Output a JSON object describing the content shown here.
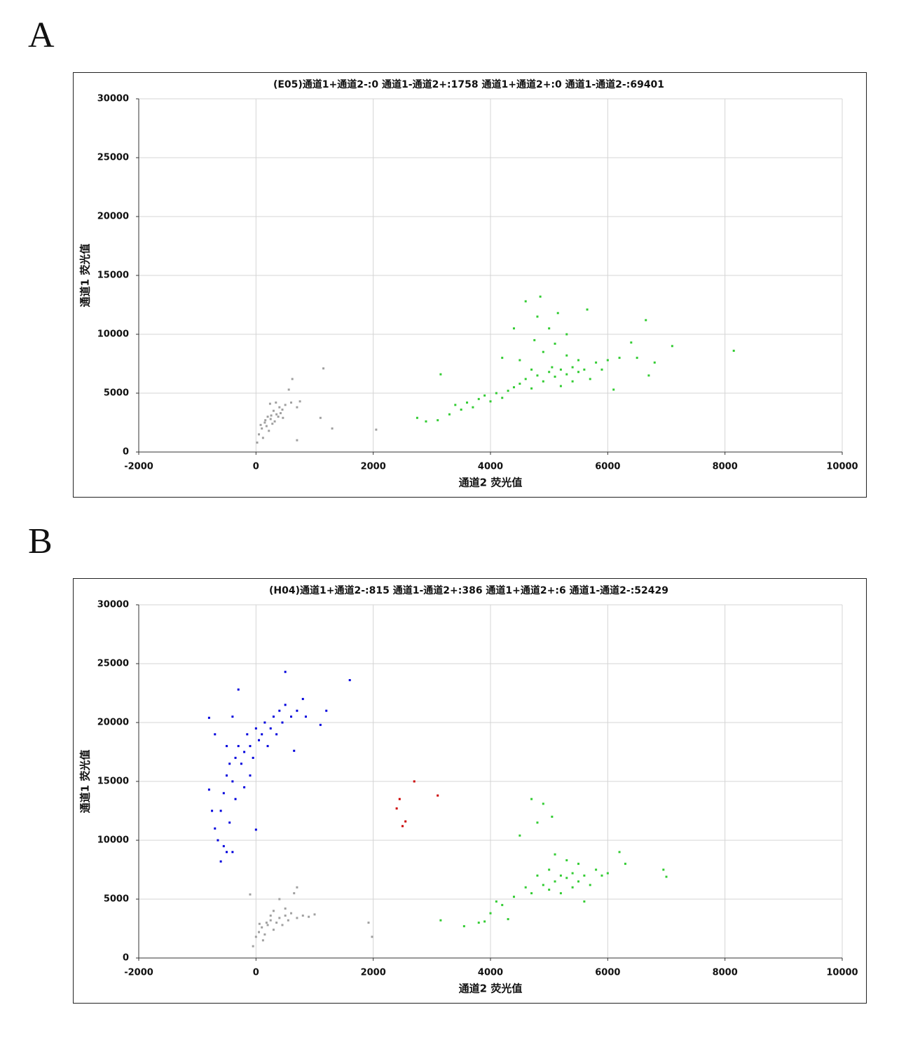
{
  "chart_data": [
    {
      "type": "scatter",
      "panel_label": "A",
      "title": "(E05)通道1+通道2-:0    通道1-通道2+:1758    通道1+通道2+:0    通道1-通道2-:69401",
      "xlabel": "通道2  荧光值",
      "ylabel": "通道1  荧光值",
      "xlim": [
        -2000,
        10000
      ],
      "ylim": [
        0,
        30000
      ],
      "xticks": [
        -2000,
        0,
        2000,
        4000,
        6000,
        8000,
        10000
      ],
      "yticks": [
        0,
        5000,
        10000,
        15000,
        20000,
        25000,
        30000
      ],
      "grid": true,
      "series": [
        {
          "color": "#a0a0a0",
          "x": [
            100,
            150,
            200,
            250,
            300,
            350,
            400,
            50,
            120,
            180,
            220,
            280,
            320,
            380,
            450,
            500,
            420,
            260,
            160,
            80,
            600,
            700,
            750,
            560,
            620,
            700,
            20,
            240,
            340,
            460,
            1150,
            1100,
            1300,
            2050
          ],
          "values": [
            2000,
            2500,
            3000,
            2800,
            3500,
            3200,
            3800,
            1500,
            1200,
            2200,
            1800,
            2400,
            2600,
            3000,
            3600,
            4000,
            3300,
            3100,
            2700,
            2300,
            4200,
            3800,
            4300,
            5300,
            6200,
            1000,
            800,
            4100,
            4200,
            2900,
            7100,
            2900,
            2000,
            1900
          ]
        },
        {
          "color": "#33cc33",
          "x": [
            2750,
            2900,
            3100,
            3150,
            3300,
            3400,
            3500,
            3600,
            3700,
            3800,
            3900,
            4000,
            4100,
            4200,
            4300,
            4400,
            4500,
            4500,
            4600,
            4600,
            4700,
            4700,
            4750,
            4800,
            4800,
            4850,
            4900,
            4900,
            5000,
            5000,
            5050,
            5100,
            5100,
            5150,
            5200,
            5200,
            5300,
            5300,
            5400,
            5400,
            5500,
            5500,
            5600,
            5650,
            5700,
            5800,
            5900,
            6000,
            6100,
            6200,
            6400,
            6500,
            6650,
            6700,
            6800,
            7100,
            8150,
            4400,
            4200,
            5300
          ],
          "values": [
            2900,
            2600,
            2700,
            6600,
            3200,
            4000,
            3600,
            4200,
            3800,
            4500,
            4800,
            4300,
            5000,
            4600,
            5200,
            5500,
            5800,
            7800,
            6200,
            12800,
            5400,
            7000,
            9500,
            6500,
            11500,
            13200,
            6000,
            8500,
            6800,
            10500,
            7200,
            6400,
            9200,
            11800,
            7000,
            5600,
            6600,
            8200,
            7200,
            6000,
            6800,
            7800,
            7000,
            12100,
            6200,
            7600,
            7000,
            7800,
            5300,
            8000,
            9300,
            8000,
            11200,
            6500,
            7600,
            9000,
            8600,
            10500,
            8000,
            10000
          ]
        }
      ]
    },
    {
      "type": "scatter",
      "panel_label": "B",
      "title": "(H04)通道1+通道2-:815    通道1-通道2+:386    通道1+通道2+:6    通道1-通道2-:52429",
      "xlabel": "通道2  荧光值",
      "ylabel": "通道1  荧光值",
      "xlim": [
        -2000,
        10000
      ],
      "ylim": [
        0,
        30000
      ],
      "xticks": [
        -2000,
        0,
        2000,
        4000,
        6000,
        8000,
        10000
      ],
      "yticks": [
        0,
        5000,
        10000,
        15000,
        20000,
        25000,
        30000
      ],
      "grid": true,
      "series": [
        {
          "color": "#a0a0a0",
          "x": [
            -50,
            0,
            50,
            100,
            150,
            200,
            250,
            300,
            350,
            400,
            450,
            500,
            550,
            600,
            700,
            800,
            900,
            1000,
            650,
            700,
            -100,
            120,
            300,
            400,
            250,
            180,
            500,
            1920,
            1980,
            60
          ],
          "values": [
            1000,
            1800,
            2200,
            2600,
            2000,
            2800,
            3200,
            2400,
            3000,
            3400,
            2800,
            3600,
            3200,
            3800,
            3400,
            3600,
            3500,
            3700,
            5500,
            6000,
            5400,
            1500,
            4000,
            5000,
            3600,
            3000,
            4200,
            3000,
            1800,
            2900
          ]
        },
        {
          "color": "#0000dd",
          "x": [
            -800,
            -750,
            -700,
            -650,
            -600,
            -550,
            -500,
            -450,
            -400,
            -600,
            -550,
            -500,
            -450,
            -400,
            -350,
            -300,
            -250,
            -200,
            -150,
            -100,
            -50,
            0,
            50,
            100,
            150,
            200,
            250,
            300,
            350,
            400,
            450,
            500,
            600,
            700,
            800,
            850,
            -300,
            -400,
            -700,
            -800,
            500,
            1600,
            1100,
            1200,
            0,
            -200,
            -350,
            -100,
            650,
            -500
          ],
          "values": [
            14300,
            12500,
            11000,
            10000,
            8200,
            9500,
            9000,
            11500,
            9000,
            12500,
            14000,
            15500,
            16500,
            15000,
            17000,
            18000,
            16500,
            17500,
            19000,
            18000,
            17000,
            19500,
            18500,
            19000,
            20000,
            18000,
            19500,
            20500,
            19000,
            21000,
            20000,
            21500,
            20500,
            21000,
            22000,
            20500,
            22800,
            20500,
            19000,
            20400,
            24300,
            23600,
            19800,
            21000,
            10900,
            14500,
            13500,
            15500,
            17600,
            18000
          ]
        },
        {
          "color": "#cc0000",
          "x": [
            2400,
            2450,
            2500,
            2550,
            2700,
            3100
          ],
          "values": [
            12700,
            13500,
            11200,
            11600,
            15000,
            13800
          ]
        },
        {
          "color": "#33cc33",
          "x": [
            3150,
            3550,
            3800,
            3900,
            4000,
            4100,
            4200,
            4300,
            4400,
            4500,
            4600,
            4700,
            4700,
            4800,
            4800,
            4900,
            4900,
            5000,
            5000,
            5100,
            5100,
            5200,
            5200,
            5300,
            5300,
            5400,
            5400,
            5500,
            5500,
            5600,
            5700,
            5800,
            5900,
            6000,
            6200,
            6300,
            6950,
            7000,
            5050,
            5600
          ],
          "values": [
            3200,
            2700,
            3000,
            3100,
            3800,
            4800,
            4500,
            3300,
            5200,
            10400,
            6000,
            5500,
            13500,
            7000,
            11500,
            6200,
            13100,
            7500,
            5800,
            6500,
            8800,
            7000,
            5500,
            6800,
            8300,
            7200,
            6000,
            6500,
            8000,
            7000,
            6200,
            7500,
            7000,
            7200,
            9000,
            8000,
            7500,
            6900,
            12000,
            4800
          ]
        }
      ]
    }
  ]
}
